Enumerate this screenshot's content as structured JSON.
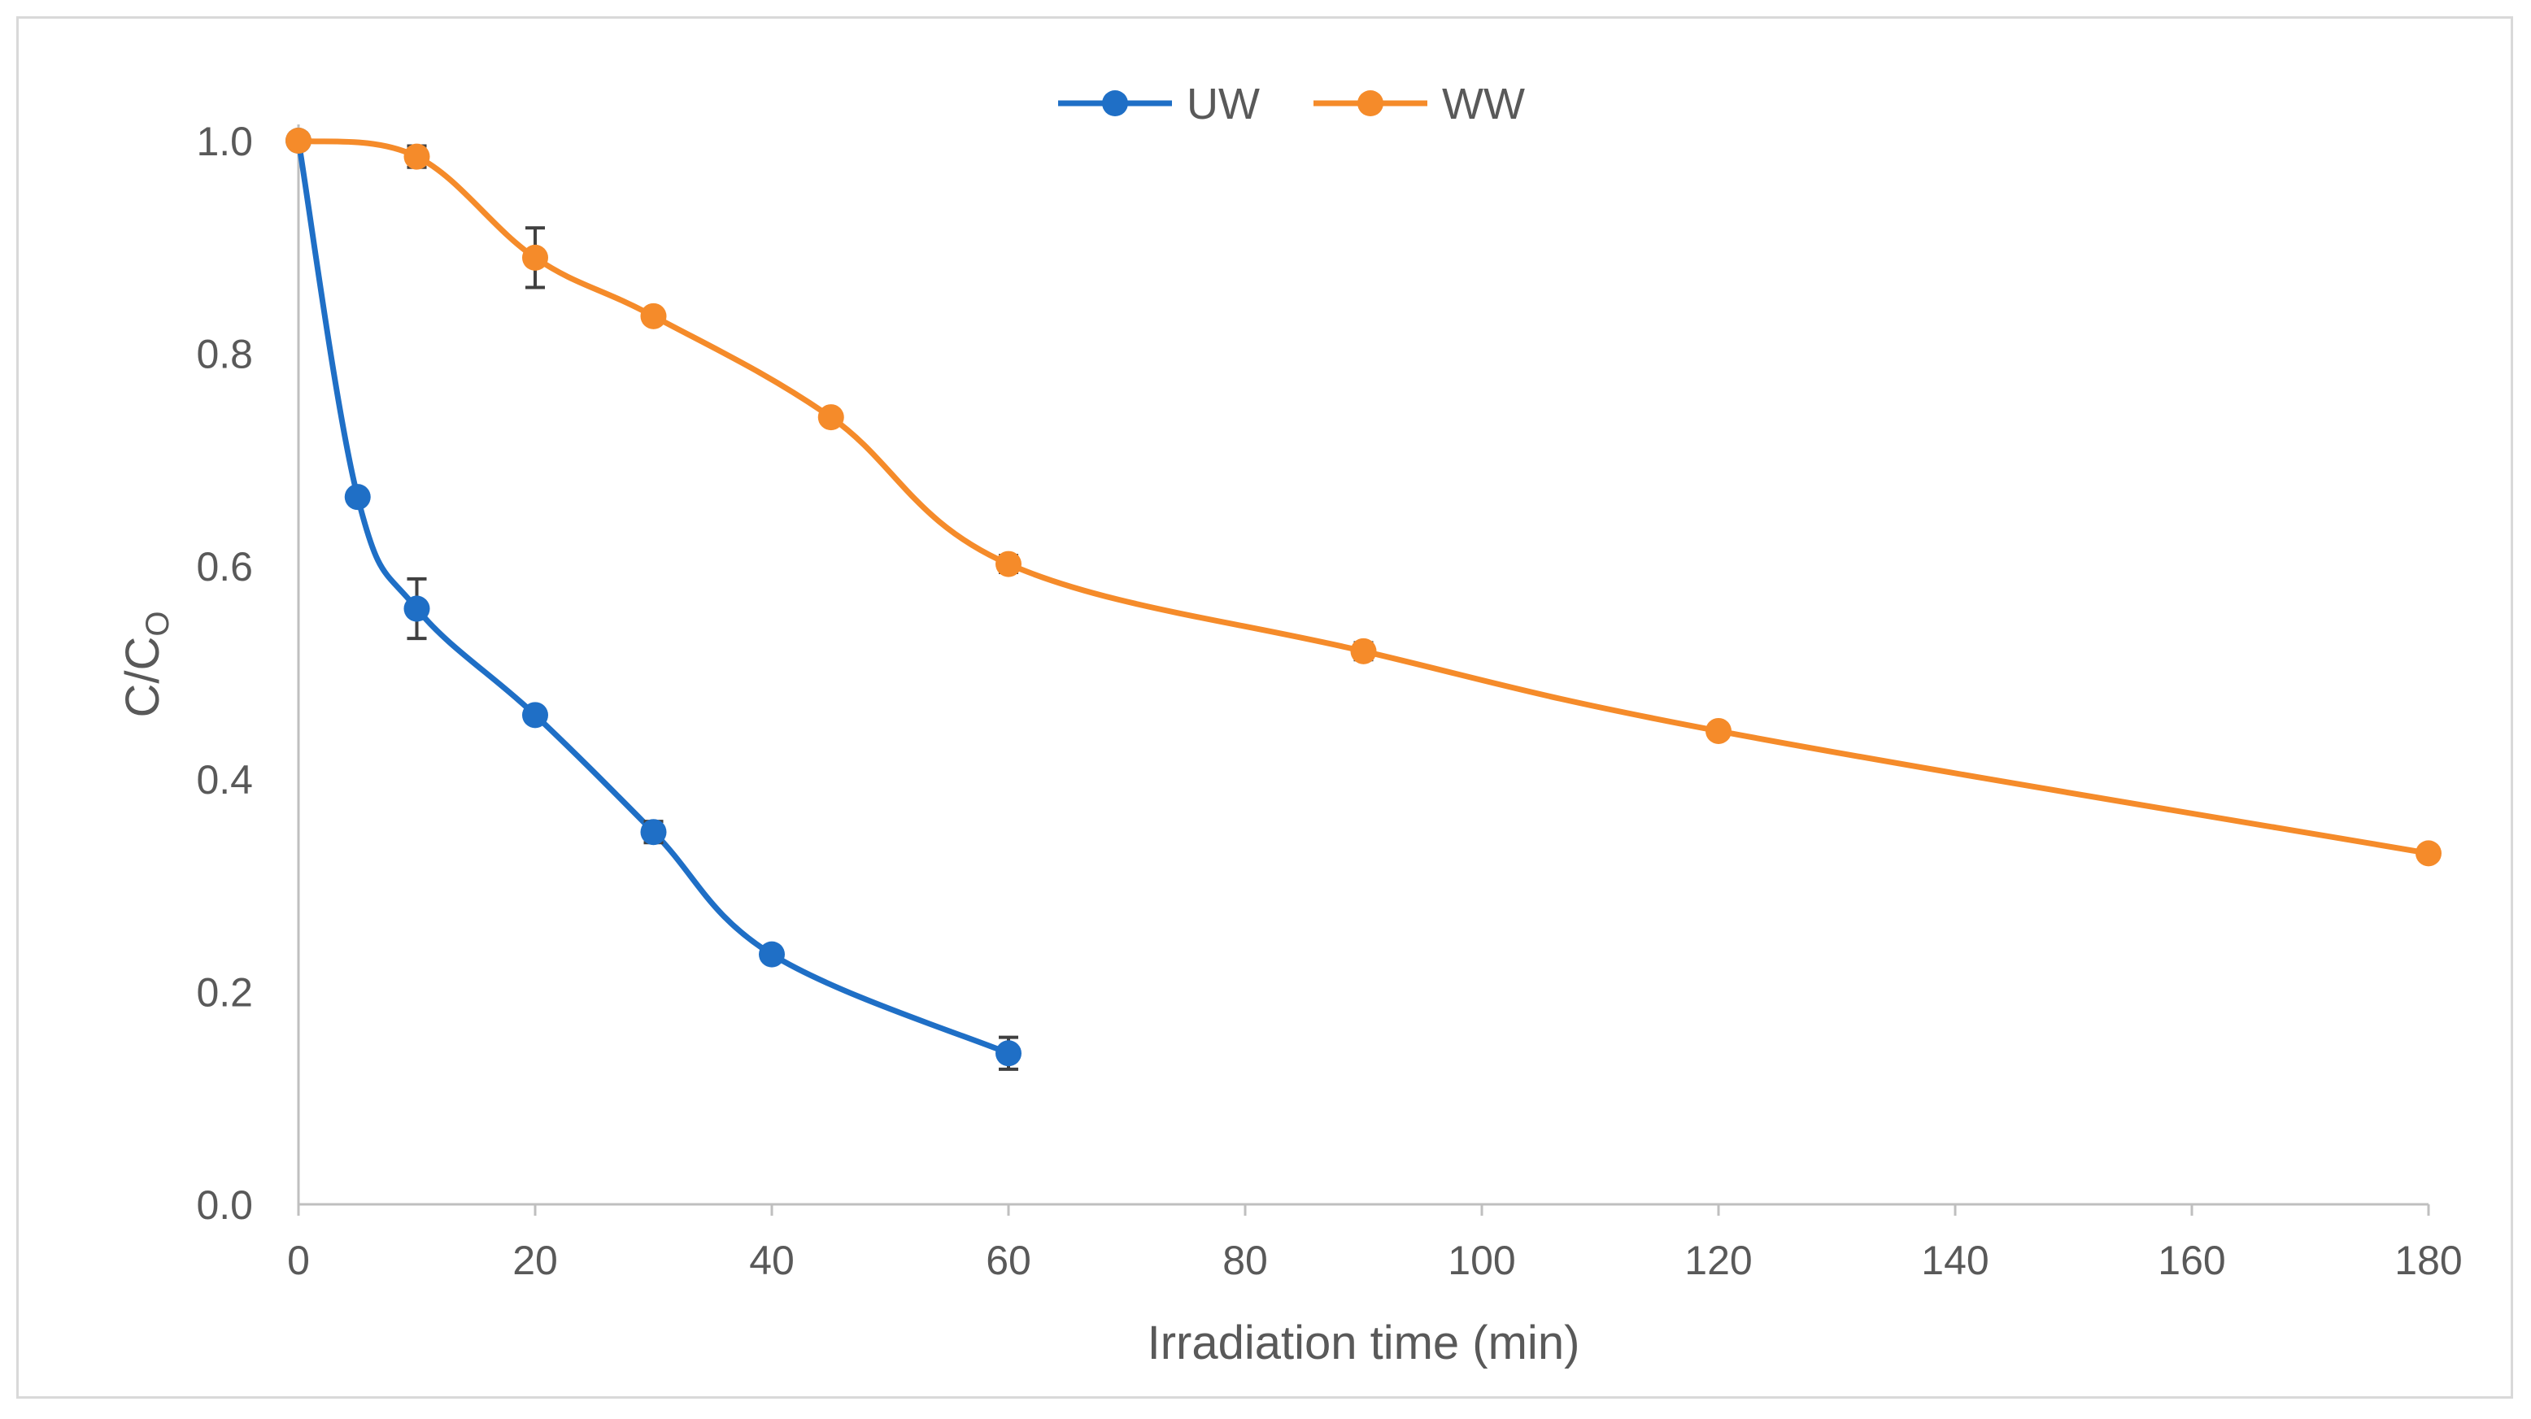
{
  "chart_data": {
    "type": "line",
    "title": "",
    "xlabel": "Irradiation time (min)",
    "ylabel": "C/C",
    "ylabel_subscript": "O",
    "xlim": [
      0,
      180
    ],
    "ylim": [
      0,
      1.0
    ],
    "x_ticks": [
      0,
      20,
      40,
      60,
      80,
      100,
      120,
      140,
      160,
      180
    ],
    "y_ticks": [
      0,
      0.2,
      0.4,
      0.6,
      0.8,
      1.0
    ],
    "x_tick_labels": [
      "0",
      "20",
      "40",
      "60",
      "80",
      "100",
      "120",
      "140",
      "160",
      "180"
    ],
    "y_tick_labels": [
      "0.0",
      "0.2",
      "0.4",
      "0.6",
      "0.8",
      "1.0"
    ],
    "grid": false,
    "legend_position": "top-center",
    "smooth": true,
    "series": [
      {
        "name": "UW",
        "color": "#1f6fc6",
        "x": [
          0,
          5,
          10,
          20,
          30,
          40,
          60
        ],
        "y": [
          1.0,
          0.665,
          0.56,
          0.46,
          0.35,
          0.235,
          0.142
        ],
        "err": [
          0,
          0,
          0.028,
          0,
          0.01,
          0,
          0.015
        ]
      },
      {
        "name": "WW",
        "color": "#f58b2a",
        "x": [
          0,
          10,
          20,
          30,
          45,
          60,
          90,
          120,
          180
        ],
        "y": [
          1.0,
          0.985,
          0.89,
          0.835,
          0.74,
          0.602,
          0.52,
          0.445,
          0.33
        ],
        "err": [
          0,
          0.01,
          0.028,
          0,
          0,
          0.008,
          0.008,
          0,
          0
        ]
      }
    ]
  }
}
